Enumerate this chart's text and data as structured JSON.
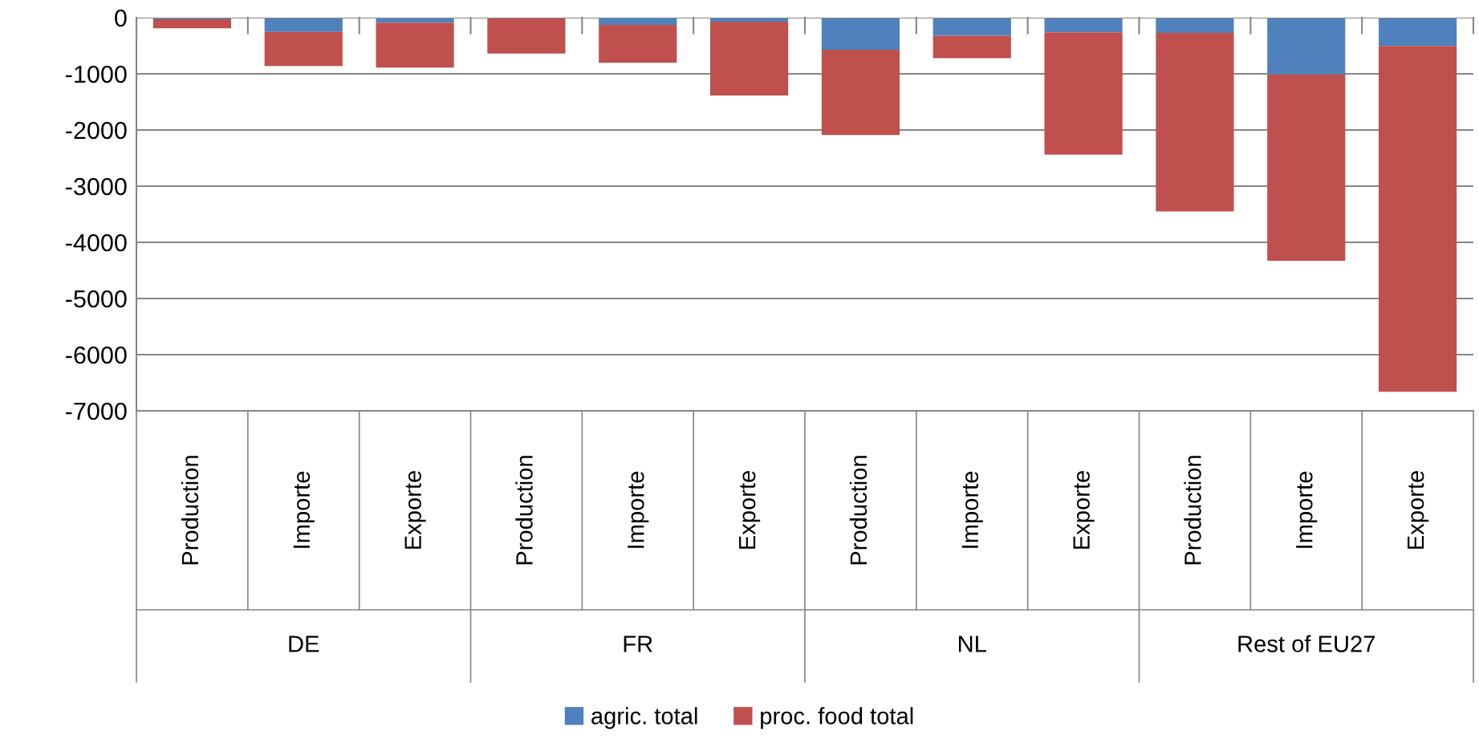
{
  "chart_data": {
    "type": "bar",
    "stacked": true,
    "categories": [
      "Production",
      "Importe",
      "Exporte",
      "Production",
      "Importe",
      "Exporte",
      "Production",
      "Importe",
      "Exporte",
      "Production",
      "Importe",
      "Exporte"
    ],
    "series": [
      {
        "name": "agric. total",
        "color": "#4f81bd",
        "values": [
          -30,
          -255,
          -90,
          0,
          -130,
          -70,
          -570,
          -320,
          -260,
          -270,
          -1010,
          -505
        ]
      },
      {
        "name": "proc. food total",
        "color": "#c0504d",
        "values": [
          -160,
          -605,
          -800,
          -640,
          -675,
          -1315,
          -1520,
          -400,
          -2180,
          -3180,
          -3320,
          -6155
        ]
      }
    ],
    "annotations": [
      "DE",
      "FR",
      "NL",
      "Rest of EU27"
    ],
    "ylim": [
      -7000,
      0
    ],
    "yticks": [
      -7000,
      -6000,
      -5000,
      -4000,
      -3000,
      -2000,
      -1000,
      0
    ],
    "grid": "y",
    "legend": "bottom"
  }
}
